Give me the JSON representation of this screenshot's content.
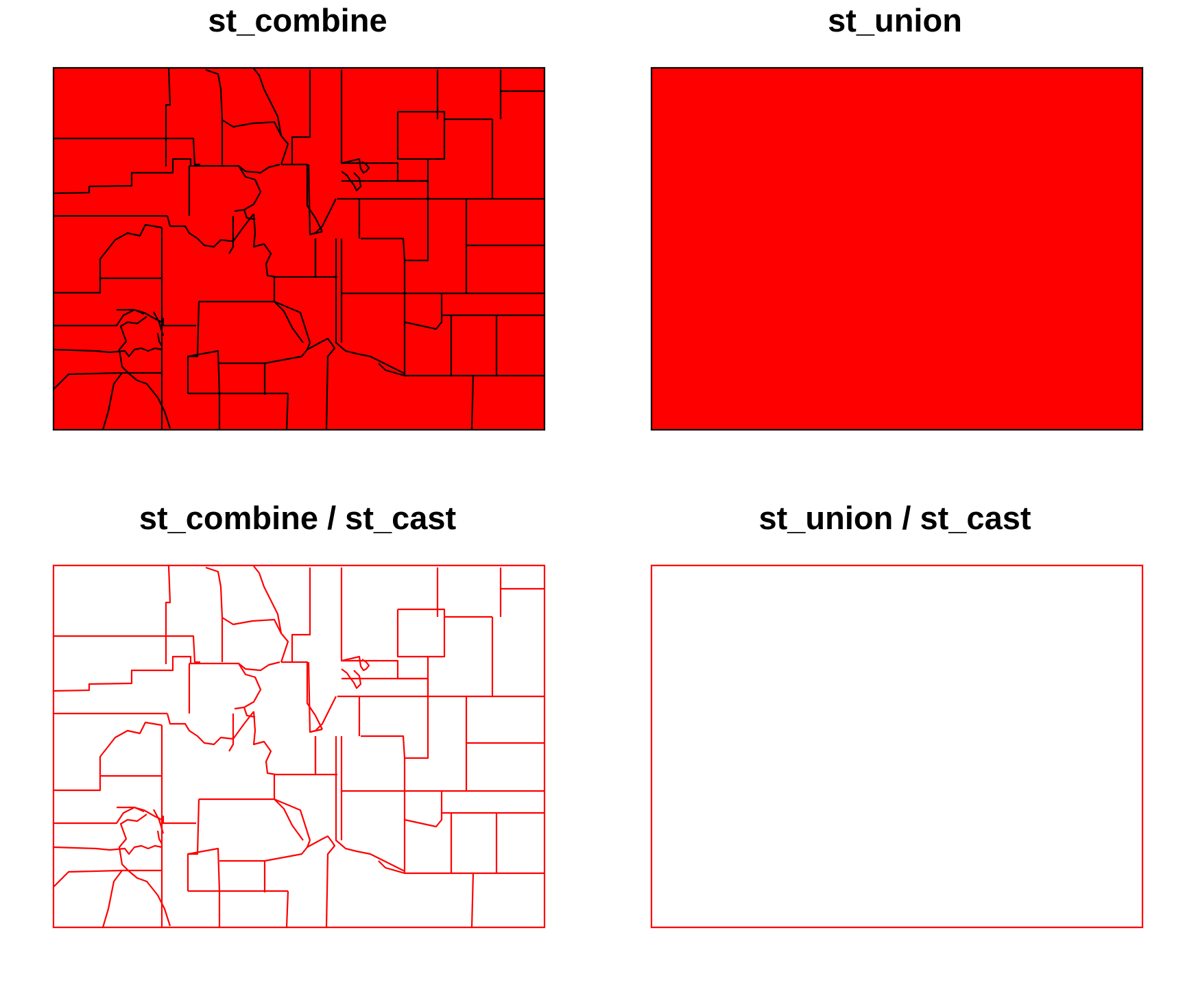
{
  "panels": [
    {
      "title": "st_combine",
      "fill": "#fe0000",
      "stroke": "#000000",
      "counties": true
    },
    {
      "title": "st_union",
      "fill": "#fe0000",
      "stroke": "#000000",
      "counties": false
    },
    {
      "title": "st_combine / st_cast",
      "fill": "none",
      "stroke": "#fe0000",
      "counties": true
    },
    {
      "title": "st_union / st_cast",
      "fill": "none",
      "stroke": "#fe0000",
      "counties": false
    }
  ]
}
